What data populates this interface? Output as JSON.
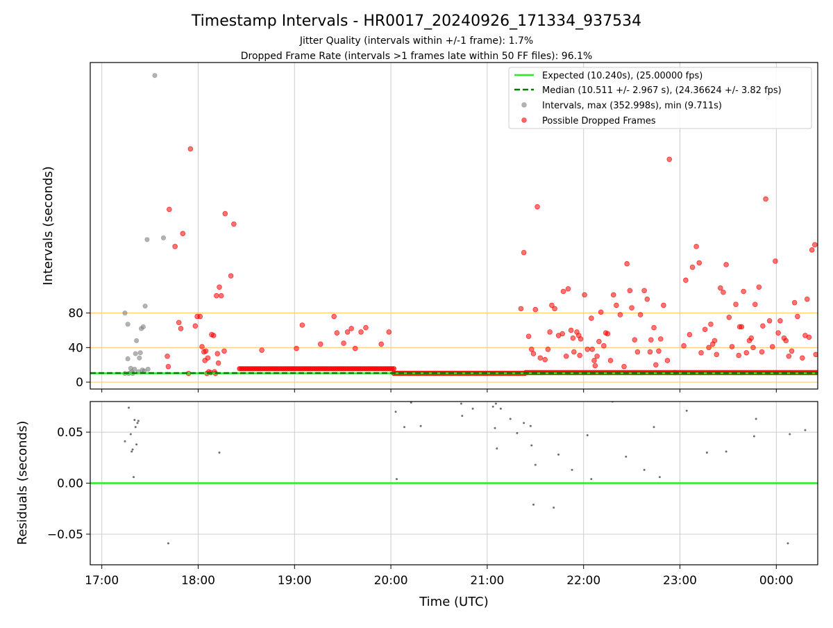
{
  "figure": {
    "title": "Timestamp Intervals - HR0017_20240926_171334_937534",
    "subtitle_1": "Jitter Quality (intervals within +/-1 frame): 1.7%",
    "subtitle_2": "Dropped Frame Rate (intervals >1 frames late within 50 FF files): 96.1%"
  },
  "legend": {
    "expected": "Expected (10.240s), (25.00000 fps)",
    "median": "Median (10.511 +/- 2.967 s), (24.36624 +/- 3.82 fps)",
    "intervals": "Intervals, max (352.998s), min (9.711s)",
    "dropped": "Possible Dropped Frames"
  },
  "colors": {
    "expected": "#22ee22",
    "median": "#007700",
    "intervals": "#808080",
    "dropped": "#ff0000",
    "threshold": "#ffcc66",
    "grid": "#cccccc"
  },
  "chart_data": [
    {
      "type": "scatter",
      "ylabel": "Intervals (seconds)",
      "x_unit": "hours UTC (17.0 = 17:00, 24.0 = 00:00 next day)",
      "xlim": [
        16.88,
        24.43
      ],
      "ylim": [
        -8,
        370
      ],
      "y_ticks": [
        0,
        40,
        80
      ],
      "y_ticklabels": [
        "0",
        "40",
        "80"
      ],
      "threshold_lines": [
        0,
        40,
        80
      ],
      "grid": "vertical",
      "legend_position": "top-right",
      "expected": 10.24,
      "median": 10.511,
      "intervals": [
        [
          17.24,
          80
        ],
        [
          17.27,
          67
        ],
        [
          17.31,
          12
        ],
        [
          17.34,
          15
        ],
        [
          17.36,
          48
        ],
        [
          17.38,
          12
        ],
        [
          17.41,
          62
        ],
        [
          17.43,
          64
        ],
        [
          17.45,
          88
        ],
        [
          17.27,
          27
        ],
        [
          17.3,
          16
        ],
        [
          17.32,
          10
        ],
        [
          17.35,
          33
        ],
        [
          17.4,
          34
        ],
        [
          17.42,
          14
        ],
        [
          17.48,
          15
        ],
        [
          17.24,
          10
        ],
        [
          17.28,
          10
        ],
        [
          17.39,
          28
        ],
        [
          17.47,
          165
        ],
        [
          17.55,
          355
        ],
        [
          17.64,
          167
        ],
        [
          17.44,
          13
        ]
      ],
      "dropped_frames": [
        [
          17.68,
          30
        ],
        [
          17.69,
          18
        ],
        [
          17.7,
          200
        ],
        [
          17.76,
          157
        ],
        [
          17.8,
          69
        ],
        [
          17.82,
          62
        ],
        [
          17.84,
          172
        ],
        [
          17.9,
          10
        ],
        [
          17.92,
          270
        ],
        [
          17.97,
          65
        ],
        [
          17.99,
          76
        ],
        [
          18.02,
          76
        ],
        [
          18.04,
          41
        ],
        [
          18.06,
          35
        ],
        [
          18.07,
          25
        ],
        [
          18.08,
          36
        ],
        [
          18.09,
          10
        ],
        [
          18.1,
          28
        ],
        [
          18.11,
          12
        ],
        [
          18.13,
          11
        ],
        [
          18.14,
          55
        ],
        [
          18.16,
          54
        ],
        [
          18.17,
          12
        ],
        [
          18.18,
          10
        ],
        [
          18.19,
          100
        ],
        [
          18.2,
          33
        ],
        [
          18.21,
          22
        ],
        [
          18.22,
          110
        ],
        [
          18.24,
          100
        ],
        [
          18.27,
          36
        ],
        [
          18.28,
          195
        ],
        [
          18.34,
          123
        ],
        [
          18.37,
          183
        ],
        [
          18.66,
          37
        ],
        [
          19.02,
          39
        ],
        [
          19.08,
          66
        ],
        [
          19.27,
          44
        ],
        [
          19.41,
          76
        ],
        [
          19.44,
          57
        ],
        [
          19.51,
          45
        ],
        [
          19.55,
          58
        ],
        [
          19.59,
          62
        ],
        [
          19.63,
          39
        ],
        [
          19.69,
          58
        ],
        [
          19.74,
          63
        ],
        [
          19.9,
          44
        ],
        [
          19.98,
          58
        ],
        [
          21.35,
          85
        ],
        [
          21.38,
          150
        ],
        [
          21.43,
          53
        ],
        [
          21.46,
          38
        ],
        [
          21.48,
          33
        ],
        [
          21.5,
          84
        ],
        [
          21.52,
          203
        ],
        [
          21.55,
          28
        ],
        [
          21.6,
          26
        ],
        [
          21.63,
          38
        ],
        [
          21.65,
          58
        ],
        [
          21.67,
          89
        ],
        [
          21.7,
          85
        ],
        [
          21.74,
          54
        ],
        [
          21.78,
          56
        ],
        [
          21.79,
          105
        ],
        [
          21.82,
          30
        ],
        [
          21.84,
          108
        ],
        [
          21.87,
          60
        ],
        [
          21.89,
          51
        ],
        [
          21.9,
          35
        ],
        [
          21.93,
          58
        ],
        [
          21.95,
          54
        ],
        [
          21.96,
          31
        ],
        [
          21.97,
          50
        ],
        [
          22.01,
          101
        ],
        [
          22.04,
          38
        ],
        [
          22.08,
          74
        ],
        [
          22.09,
          38
        ],
        [
          22.11,
          25
        ],
        [
          22.12,
          19
        ],
        [
          22.14,
          30
        ],
        [
          22.16,
          47
        ],
        [
          22.18,
          81
        ],
        [
          22.21,
          42
        ],
        [
          22.23,
          57
        ],
        [
          22.25,
          56
        ],
        [
          22.28,
          25
        ],
        [
          22.31,
          101
        ],
        [
          22.34,
          89
        ],
        [
          22.38,
          78
        ],
        [
          22.42,
          18
        ],
        [
          22.45,
          137
        ],
        [
          22.48,
          106
        ],
        [
          22.5,
          86
        ],
        [
          22.53,
          49
        ],
        [
          22.56,
          35
        ],
        [
          22.59,
          78
        ],
        [
          22.63,
          106
        ],
        [
          22.66,
          96
        ],
        [
          22.69,
          35
        ],
        [
          22.7,
          49
        ],
        [
          22.73,
          63
        ],
        [
          22.75,
          20
        ],
        [
          22.78,
          36
        ],
        [
          22.8,
          50
        ],
        [
          22.83,
          89
        ],
        [
          22.87,
          25
        ],
        [
          22.89,
          258
        ],
        [
          22.95,
          11
        ],
        [
          23.04,
          42
        ],
        [
          23.06,
          118
        ],
        [
          23.1,
          55
        ],
        [
          23.13,
          133
        ],
        [
          23.17,
          157
        ],
        [
          23.2,
          138
        ],
        [
          23.22,
          34
        ],
        [
          23.26,
          61
        ],
        [
          23.3,
          40
        ],
        [
          23.32,
          67
        ],
        [
          23.34,
          44
        ],
        [
          23.36,
          48
        ],
        [
          23.38,
          32
        ],
        [
          23.42,
          109
        ],
        [
          23.45,
          104
        ],
        [
          23.48,
          136
        ],
        [
          23.51,
          75
        ],
        [
          23.54,
          41
        ],
        [
          23.58,
          90
        ],
        [
          23.61,
          31
        ],
        [
          23.62,
          64
        ],
        [
          23.64,
          64
        ],
        [
          23.66,
          105
        ],
        [
          23.69,
          34
        ],
        [
          23.72,
          48
        ],
        [
          23.74,
          51
        ],
        [
          23.76,
          40
        ],
        [
          23.78,
          90
        ],
        [
          23.82,
          110
        ],
        [
          23.85,
          35
        ],
        [
          23.86,
          65
        ],
        [
          23.89,
          212
        ],
        [
          23.93,
          71
        ],
        [
          23.96,
          41
        ],
        [
          23.99,
          140
        ],
        [
          24.02,
          57
        ],
        [
          24.04,
          71
        ],
        [
          24.08,
          51
        ],
        [
          24.1,
          48
        ],
        [
          24.13,
          30
        ],
        [
          24.16,
          36
        ],
        [
          24.19,
          92
        ],
        [
          24.22,
          76
        ],
        [
          24.27,
          28
        ],
        [
          24.3,
          54
        ],
        [
          24.32,
          96
        ],
        [
          24.34,
          52
        ],
        [
          24.37,
          153
        ],
        [
          24.4,
          159
        ],
        [
          24.41,
          32
        ]
      ],
      "dense_segments": [
        {
          "x_start": 18.43,
          "x_end": 20.03,
          "y": 15.5
        },
        {
          "x_start": 20.03,
          "x_end": 21.4,
          "y": 10.24
        },
        {
          "x_start": 21.4,
          "x_end": 24.43,
          "y": 11.0
        }
      ]
    },
    {
      "type": "scatter",
      "xlabel": "Time (UTC)",
      "ylabel": "Residuals (seconds)",
      "xlim": [
        16.88,
        24.43
      ],
      "ylim": [
        -0.08,
        0.08
      ],
      "y_ticks": [
        -0.05,
        0.0,
        0.05
      ],
      "y_ticklabels": [
        "−0.05",
        "0.00",
        "0.05"
      ],
      "x_ticks": [
        17,
        18,
        19,
        20,
        21,
        22,
        23,
        24
      ],
      "x_ticklabels": [
        "17:00",
        "18:00",
        "19:00",
        "20:00",
        "21:00",
        "22:00",
        "23:00",
        "00:00"
      ],
      "grid": "both",
      "zero_line": 0.0,
      "residuals": [
        [
          17.24,
          0.041
        ],
        [
          17.28,
          0.074
        ],
        [
          17.3,
          0.048
        ],
        [
          17.31,
          0.031
        ],
        [
          17.32,
          0.033
        ],
        [
          17.33,
          0.006
        ],
        [
          17.34,
          0.062
        ],
        [
          17.35,
          0.055
        ],
        [
          17.36,
          0.038
        ],
        [
          17.37,
          0.059
        ],
        [
          17.38,
          0.061
        ],
        [
          17.69,
          -0.059
        ],
        [
          18.22,
          0.03
        ],
        [
          20.05,
          0.07
        ],
        [
          20.06,
          0.004
        ],
        [
          20.14,
          0.055
        ],
        [
          20.21,
          0.079
        ],
        [
          20.31,
          0.056
        ],
        [
          20.73,
          0.078
        ],
        [
          20.74,
          0.066
        ],
        [
          20.85,
          0.073
        ],
        [
          21.06,
          0.075
        ],
        [
          21.08,
          0.054
        ],
        [
          21.09,
          0.078
        ],
        [
          21.1,
          0.034
        ],
        [
          21.14,
          0.073
        ],
        [
          21.24,
          0.063
        ],
        [
          21.31,
          0.049
        ],
        [
          21.38,
          0.059
        ],
        [
          21.45,
          0.056
        ],
        [
          21.46,
          0.037
        ],
        [
          21.48,
          -0.021
        ],
        [
          21.5,
          0.018
        ],
        [
          21.69,
          -0.024
        ],
        [
          21.74,
          0.028
        ],
        [
          21.88,
          0.013
        ],
        [
          22.04,
          0.047
        ],
        [
          22.08,
          0.004
        ],
        [
          22.3,
          0.08
        ],
        [
          22.44,
          0.026
        ],
        [
          22.63,
          0.013
        ],
        [
          22.73,
          0.055
        ],
        [
          22.79,
          0.006
        ],
        [
          23.07,
          0.071
        ],
        [
          23.28,
          0.03
        ],
        [
          23.48,
          0.031
        ],
        [
          23.77,
          0.046
        ],
        [
          23.79,
          0.063
        ],
        [
          24.12,
          -0.059
        ],
        [
          24.14,
          0.048
        ],
        [
          24.3,
          0.052
        ]
      ]
    }
  ]
}
